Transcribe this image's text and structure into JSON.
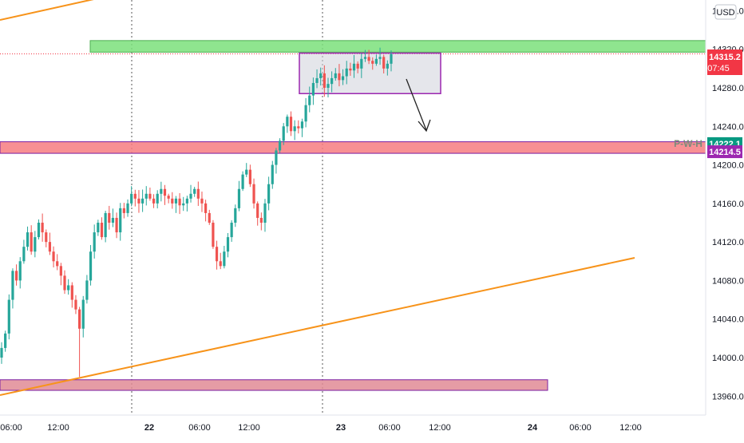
{
  "chart_data": {
    "type": "candlestick",
    "instrument_currency": "USD",
    "y_axis": {
      "ticks": [
        "13960.0",
        "14000.0",
        "14040.0",
        "14080.0",
        "14120.0",
        "14160.0",
        "14200.0",
        "14240.0",
        "14280.0",
        "14320.0",
        "14360.0"
      ],
      "range": [
        13955,
        14370
      ]
    },
    "x_axis": {
      "ticks": [
        {
          "label": "06:00",
          "major": false
        },
        {
          "label": "12:00",
          "major": false
        },
        {
          "label": "22",
          "major": true
        },
        {
          "label": "06:00",
          "major": false
        },
        {
          "label": "12:00",
          "major": false
        },
        {
          "label": "23",
          "major": true
        },
        {
          "label": "06:00",
          "major": false
        },
        {
          "label": "12:00",
          "major": false
        },
        {
          "label": "24",
          "major": true
        },
        {
          "label": "06:00",
          "major": false
        },
        {
          "label": "12:00",
          "major": false
        }
      ],
      "day_separators": [
        "22",
        "23"
      ]
    },
    "price_labels": [
      {
        "value": "14315.2",
        "sub": "07:45",
        "color": "#f23645"
      },
      {
        "value": "14222.1",
        "sub": "",
        "color": "#089981"
      },
      {
        "value": "14214.5",
        "sub": "",
        "color": "#9c27b0"
      }
    ],
    "current_price": 14315.2,
    "zones": [
      {
        "name": "resistance-zone",
        "y_from": 14317,
        "y_to": 14329,
        "color": "#7be07b"
      },
      {
        "name": "pwh-zone",
        "y_from": 14212,
        "y_to": 14224,
        "color": "#f77c80"
      },
      {
        "name": "support-zone",
        "y_from": 13966,
        "y_to": 13977,
        "color": "#e08b95"
      }
    ],
    "consolidation_box": {
      "y_from": 14274,
      "y_to": 14316,
      "color": "#9c27b0"
    },
    "level_label": "P-W-H",
    "trendlines": [
      {
        "name": "upper-trendline",
        "color": "#f7931a"
      },
      {
        "name": "lower-trendline",
        "color": "#f7931a"
      }
    ],
    "candle_colors": {
      "up": "#26a69a",
      "down": "#ef5350"
    },
    "closes": [
      14010,
      14025,
      14060,
      14090,
      14080,
      14100,
      14115,
      14130,
      14110,
      14125,
      14140,
      14130,
      14120,
      14110,
      14100,
      14095,
      14085,
      14070,
      14075,
      14060,
      14050,
      14030,
      14060,
      14080,
      14110,
      14130,
      14140,
      14125,
      14150,
      14140,
      14145,
      14130,
      14155,
      14150,
      14160,
      14170,
      14165,
      14160,
      14165,
      14170,
      14165,
      14160,
      14170,
      14175,
      14168,
      14165,
      14160,
      14165,
      14158,
      14160,
      14165,
      14170,
      14175,
      14165,
      14160,
      14150,
      14140,
      14115,
      14100,
      14095,
      14110,
      14125,
      14140,
      14155,
      14175,
      14190,
      14195,
      14180,
      14160,
      14145,
      14140,
      14160,
      14180,
      14200,
      14215,
      14225,
      14240,
      14250,
      14235,
      14240,
      14238,
      14245,
      14262,
      14272,
      14285,
      14290,
      14295,
      14280,
      14284,
      14290,
      14295,
      14288,
      14292,
      14300,
      14298,
      14305,
      14300,
      14310,
      14312,
      14308,
      14305,
      14310,
      14312,
      14300,
      14305,
      14315
    ]
  }
}
